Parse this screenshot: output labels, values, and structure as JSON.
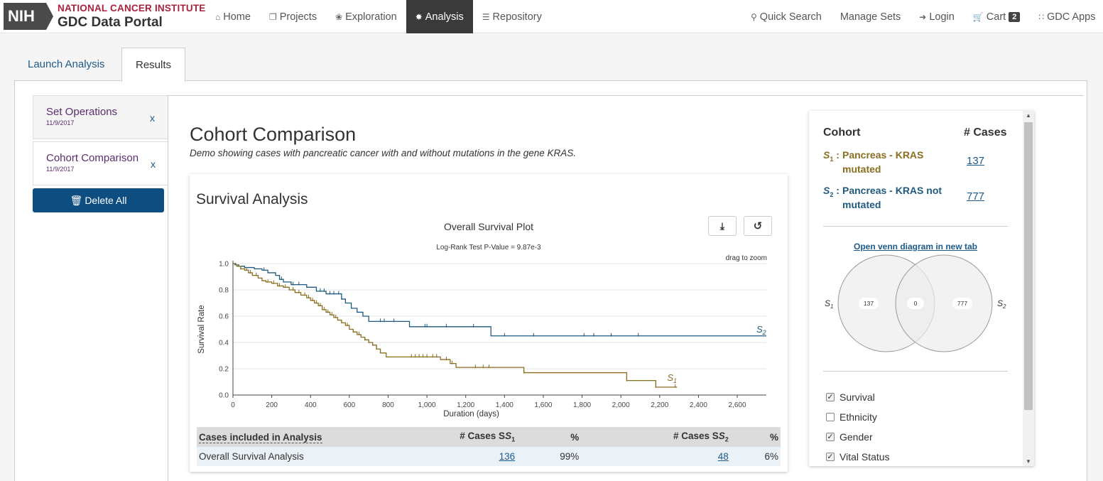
{
  "header": {
    "logo_nih": "NIH",
    "logo_nci": "NATIONAL CANCER INSTITUTE",
    "logo_gdc": "GDC Data Portal",
    "nav_left": [
      {
        "label": "Home",
        "icon": "home-icon"
      },
      {
        "label": "Projects",
        "icon": "projects-icon"
      },
      {
        "label": "Exploration",
        "icon": "exploration-icon"
      },
      {
        "label": "Analysis",
        "icon": "analysis-icon"
      },
      {
        "label": "Repository",
        "icon": "database-icon"
      }
    ],
    "nav_right": {
      "quick_search": "Quick Search",
      "manage_sets": "Manage Sets",
      "login": "Login",
      "cart": "Cart",
      "cart_count": "2",
      "gdc_apps": "GDC Apps"
    }
  },
  "tabs": {
    "launch": "Launch Analysis",
    "results": "Results"
  },
  "sidebar": {
    "items": [
      {
        "title": "Set Operations",
        "date": "11/9/2017",
        "close": "x"
      },
      {
        "title": "Cohort Comparison",
        "date": "11/9/2017",
        "close": "x"
      }
    ],
    "delete_all": "Delete All"
  },
  "main": {
    "title": "Cohort Comparison",
    "subtitle": "Demo showing cases with pancreatic cancer with and without mutations in the gene KRAS."
  },
  "survival": {
    "card_title": "Survival Analysis",
    "table": {
      "headers": [
        "Cases included in Analysis",
        "# Cases S",
        "%",
        "# Cases S",
        "%"
      ],
      "row": {
        "label": "Overall Survival Analysis",
        "s1_cases": "136",
        "s1_pct": "99%",
        "s2_cases": "48",
        "s2_pct": "6%"
      }
    }
  },
  "chart_data": {
    "type": "line",
    "title": "Overall Survival Plot",
    "subtitle": "Log-Rank Test P-Value = 9.87e-3",
    "annotation": "drag to zoom",
    "xlabel": "Duration (days)",
    "ylabel": "Survival Rate",
    "xlim": [
      0,
      2750
    ],
    "ylim": [
      0,
      1.0
    ],
    "xticks": [
      0,
      200,
      400,
      600,
      800,
      1000,
      1200,
      1400,
      1600,
      1800,
      2000,
      2200,
      2400,
      2600
    ],
    "xtick_labels": [
      "0",
      "200",
      "400",
      "600",
      "800",
      "1,000",
      "1,200",
      "1,400",
      "1,600",
      "1,800",
      "2,000",
      "2,200",
      "2,400",
      "2,600"
    ],
    "yticks": [
      0,
      0.2,
      0.4,
      0.6,
      0.8,
      1.0
    ],
    "ytick_labels": [
      "0.0",
      "0.2",
      "0.4",
      "0.6",
      "0.8",
      "1.0"
    ],
    "grid": true,
    "series": [
      {
        "name": "S2",
        "color": "#1f5a7e",
        "steps": [
          [
            0,
            1.0
          ],
          [
            15,
            0.99
          ],
          [
            30,
            0.98
          ],
          [
            60,
            0.97
          ],
          [
            110,
            0.96
          ],
          [
            150,
            0.95
          ],
          [
            180,
            0.93
          ],
          [
            220,
            0.91
          ],
          [
            240,
            0.88
          ],
          [
            260,
            0.86
          ],
          [
            300,
            0.84
          ],
          [
            380,
            0.82
          ],
          [
            430,
            0.79
          ],
          [
            480,
            0.77
          ],
          [
            560,
            0.73
          ],
          [
            580,
            0.7
          ],
          [
            610,
            0.66
          ],
          [
            640,
            0.63
          ],
          [
            670,
            0.6
          ],
          [
            700,
            0.56
          ],
          [
            910,
            0.52
          ],
          [
            1330,
            0.45
          ],
          [
            2750,
            0.45
          ]
        ],
        "censors": [
          160,
          250,
          310,
          340,
          450,
          470,
          500,
          520,
          545,
          560,
          760,
          780,
          830,
          990,
          1000,
          1100,
          1240,
          1400,
          1550,
          1810,
          1860,
          1950,
          2090
        ]
      },
      {
        "name": "S1",
        "color": "#8a6d1f",
        "steps": [
          [
            0,
            1.0
          ],
          [
            10,
            0.99
          ],
          [
            20,
            0.98
          ],
          [
            40,
            0.96
          ],
          [
            60,
            0.95
          ],
          [
            80,
            0.93
          ],
          [
            100,
            0.91
          ],
          [
            130,
            0.89
          ],
          [
            150,
            0.87
          ],
          [
            170,
            0.86
          ],
          [
            200,
            0.85
          ],
          [
            230,
            0.83
          ],
          [
            260,
            0.82
          ],
          [
            290,
            0.8
          ],
          [
            320,
            0.78
          ],
          [
            350,
            0.76
          ],
          [
            380,
            0.74
          ],
          [
            400,
            0.72
          ],
          [
            420,
            0.7
          ],
          [
            440,
            0.68
          ],
          [
            460,
            0.65
          ],
          [
            480,
            0.63
          ],
          [
            500,
            0.61
          ],
          [
            520,
            0.59
          ],
          [
            540,
            0.57
          ],
          [
            560,
            0.55
          ],
          [
            580,
            0.53
          ],
          [
            600,
            0.5
          ],
          [
            620,
            0.48
          ],
          [
            640,
            0.46
          ],
          [
            660,
            0.44
          ],
          [
            680,
            0.42
          ],
          [
            700,
            0.4
          ],
          [
            720,
            0.38
          ],
          [
            740,
            0.35
          ],
          [
            760,
            0.32
          ],
          [
            790,
            0.29
          ],
          [
            1070,
            0.27
          ],
          [
            1120,
            0.24
          ],
          [
            1150,
            0.21
          ],
          [
            1500,
            0.17
          ],
          [
            2030,
            0.11
          ],
          [
            2180,
            0.06
          ],
          [
            2290,
            0.06
          ]
        ],
        "censors": [
          40,
          70,
          90,
          120,
          180,
          210,
          240,
          270,
          310,
          340,
          370,
          390,
          410,
          430,
          450,
          470,
          490,
          510,
          530,
          560,
          590,
          620,
          650,
          680,
          700,
          720,
          740,
          920,
          940,
          960,
          980,
          1000,
          1030,
          1050,
          1100,
          1130,
          1250,
          1290,
          1320,
          1500,
          2030,
          2180,
          2280
        ]
      }
    ]
  },
  "right_panel": {
    "cohort_header": "Cohort",
    "cases_header": "# Cases",
    "cohorts": [
      {
        "sym": "S",
        "sub": "1",
        "label": "Pancreas - KRAS mutated",
        "count": "137",
        "color": "#8a6d1f"
      },
      {
        "sym": "S",
        "sub": "2",
        "label": "Pancreas - KRAS not mutated",
        "count": "777",
        "color": "#1f5a7e"
      }
    ],
    "venn_link": "Open venn diagram in new tab",
    "venn": {
      "left_label": "S",
      "left_sub": "1",
      "right_label": "S",
      "right_sub": "2",
      "left_only": "137",
      "overlap": "0",
      "right_only": "777"
    },
    "checkboxes": [
      {
        "label": "Survival",
        "checked": true
      },
      {
        "label": "Ethnicity",
        "checked": false
      },
      {
        "label": "Gender",
        "checked": true
      },
      {
        "label": "Vital Status",
        "checked": true
      }
    ]
  }
}
